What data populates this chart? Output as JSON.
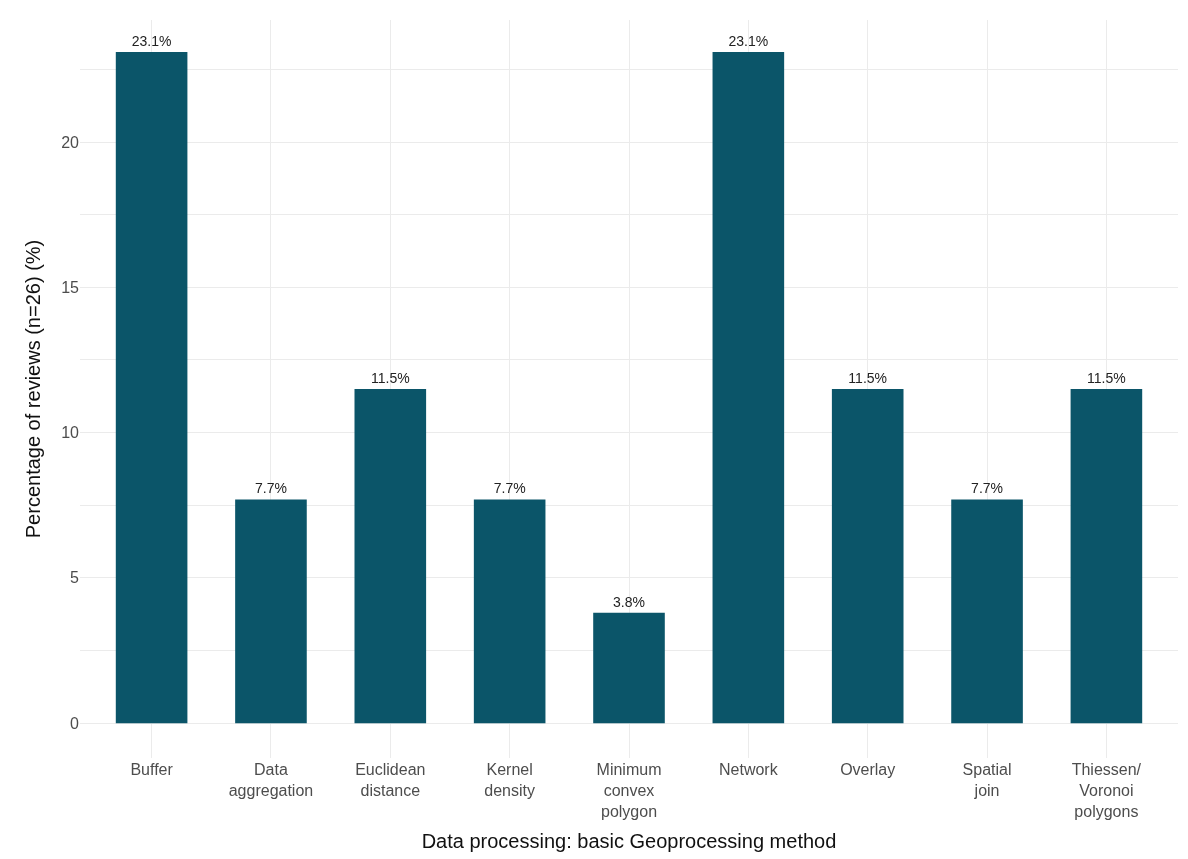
{
  "chart_data": {
    "type": "bar",
    "categories": [
      "Buffer",
      "Data\naggregation",
      "Euclidean\ndistance",
      "Kernel\ndensity",
      "Minimum\nconvex\npolygon",
      "Network",
      "Overlay",
      "Spatial\njoin",
      "Thiessen/\nVoronoi\npolygons"
    ],
    "values": [
      23.1,
      7.7,
      11.5,
      7.7,
      3.8,
      23.1,
      11.5,
      7.7,
      11.5
    ],
    "value_labels": [
      "23.1%",
      "7.7%",
      "11.5%",
      "7.7%",
      "3.8%",
      "23.1%",
      "11.5%",
      "7.7%",
      "11.5%"
    ],
    "color": "#0b5569",
    "xlabel": "Data processing: basic Geoprocessing method",
    "ylabel": "Percentage of reviews (n=26) (%)",
    "ylim": [
      -1.2,
      24.2
    ],
    "yticks": [
      0,
      {
        "value": 2.5,
        "label": null
      },
      5,
      {
        "value": 7.5,
        "label": null
      },
      10,
      {
        "value": 12.5,
        "label": null
      },
      15,
      {
        "value": 17.5,
        "label": null
      },
      20,
      {
        "value": 22.5,
        "label": null
      }
    ],
    "grid": true,
    "legend": false
  }
}
